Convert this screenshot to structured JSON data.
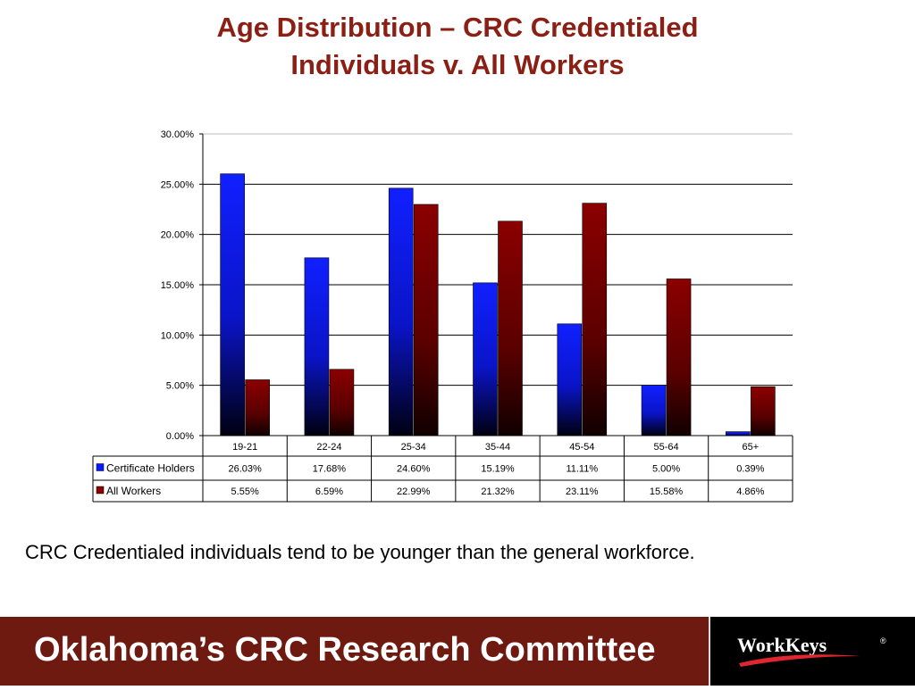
{
  "slide": {
    "title_line1": "Age Distribution – CRC Credentialed",
    "title_line2": "Individuals v. All Workers",
    "caption": "CRC Credentialed individuals tend to be younger than the general workforce.",
    "footer_text": "Oklahoma’s CRC Research Committee",
    "logo_text": "WorkKeys",
    "logo_mark": "®"
  },
  "colors": {
    "title": "#8b1f14",
    "footer_bg": "#6f1a10",
    "series_blue": "#0a1aff",
    "series_red": "#8b0000"
  },
  "chart_data": {
    "type": "bar",
    "categories": [
      "19-21",
      "22-24",
      "25-34",
      "35-44",
      "45-54",
      "55-64",
      "65+"
    ],
    "series": [
      {
        "name": "Certificate Holders",
        "values": [
          26.03,
          17.68,
          24.6,
          15.19,
          11.11,
          5.0,
          0.39
        ],
        "labels": [
          "26.03%",
          "17.68%",
          "24.60%",
          "15.19%",
          "11.11%",
          "5.00%",
          "0.39%"
        ]
      },
      {
        "name": "All Workers",
        "values": [
          5.55,
          6.59,
          22.99,
          21.32,
          23.11,
          15.58,
          4.86
        ],
        "labels": [
          "5.55%",
          "6.59%",
          "22.99%",
          "21.32%",
          "23.11%",
          "15.58%",
          "4.86%"
        ]
      }
    ],
    "ylim": [
      0,
      30
    ],
    "yticks": [
      "0.00%",
      "5.00%",
      "10.00%",
      "15.00%",
      "20.00%",
      "25.00%",
      "30.00%"
    ],
    "grid": true,
    "legend": "data-table"
  }
}
